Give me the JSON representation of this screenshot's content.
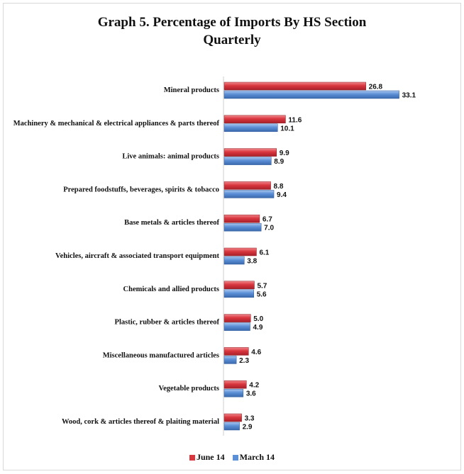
{
  "chart_data": {
    "type": "bar",
    "orientation": "horizontal",
    "title_line1": "Graph 5. Percentage of Imports By HS Section",
    "title_line2": "Quarterly",
    "categories": [
      "Mineral products",
      "Machinery & mechanical & electrical appliances & parts thereof",
      "Live animals: animal products",
      "Prepared foodstuffs,  beverages, spirits & tobacco",
      "Base metals & articles thereof",
      "Vehicles, aircraft & associated  transport equipment",
      "Chemicals and allied products",
      "Plastic, rubber & articles thereof",
      "Miscellaneous manufactured articles",
      "Vegetable products",
      "Wood, cork & articles thereof & plaiting material"
    ],
    "series": [
      {
        "name": "June 14",
        "color": "#d9363e",
        "values": [
          26.8,
          11.6,
          9.9,
          8.8,
          6.7,
          6.1,
          5.7,
          5.0,
          4.6,
          4.2,
          3.3
        ],
        "labels": [
          "26.8",
          "11.6",
          "9.9",
          "8.8",
          "6.7",
          "6.1",
          "5.7",
          "5.0",
          "4.6",
          "4.2",
          "3.3"
        ]
      },
      {
        "name": "March 14",
        "color": "#5b8fd6",
        "values": [
          33.1,
          10.1,
          8.9,
          9.4,
          7.0,
          3.8,
          5.6,
          4.9,
          2.3,
          3.6,
          2.9
        ],
        "labels": [
          "33.1",
          "10.1",
          "8.9",
          "9.4",
          "7.0",
          "3.8",
          "5.6",
          "4.9",
          "2.3",
          "3.6",
          "2.9"
        ]
      }
    ],
    "xlim": [
      0,
      35
    ],
    "grid": false,
    "legend_position": "bottom"
  }
}
